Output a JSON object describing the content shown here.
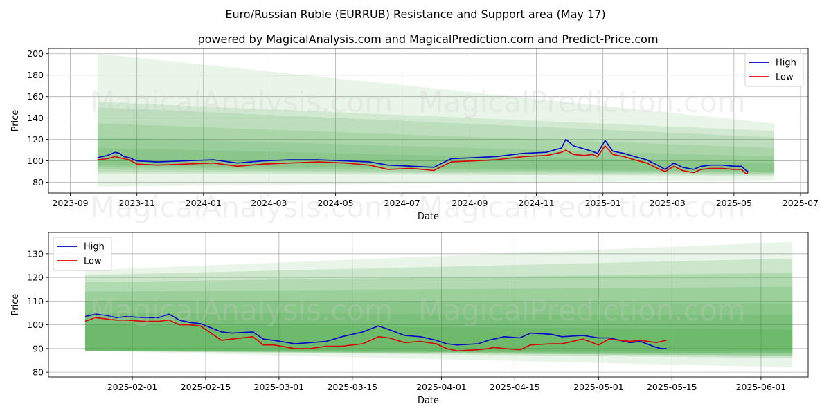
{
  "title": "Euro/Russian Ruble (EURRUB) Resistance and Support area (May 17)",
  "subtitle": "powered by MagicalAnalysis.com and MagicalPrediction.com and Predict-Price.com",
  "watermarks": [
    "MagicalAnalysis.com",
    "MagicalPrediction.com"
  ],
  "colors": {
    "high": "#0000cc",
    "low": "#dd0000",
    "band": "#2e9a2e",
    "grid": "#b0b0b0"
  },
  "chart_data": [
    {
      "type": "line",
      "panel": "top",
      "xlabel": "Date",
      "ylabel": "Price",
      "xlim": [
        "2023-08-12",
        "2025-07-08"
      ],
      "ylim": [
        70,
        205
      ],
      "xticks": [
        "2023-09",
        "2023-11",
        "2024-01",
        "2024-03",
        "2024-05",
        "2024-07",
        "2024-09",
        "2024-11",
        "2025-01",
        "2025-03",
        "2025-05",
        "2025-07"
      ],
      "yticks": [
        80,
        100,
        120,
        140,
        160,
        180,
        200
      ],
      "legend": {
        "position": "top-right",
        "entries": [
          "High",
          "Low"
        ]
      },
      "bands": {
        "start": "2023-09-26",
        "end": "2025-06-07",
        "levels": [
          {
            "start": [
              200,
              76
            ],
            "end": [
              135,
              82
            ],
            "opacity": 0.1
          },
          {
            "start": [
              155,
              88
            ],
            "end": [
              128,
              86
            ],
            "opacity": 0.13
          },
          {
            "start": [
              150,
              90
            ],
            "end": [
              122,
              87
            ],
            "opacity": 0.13
          },
          {
            "start": [
              135,
              92
            ],
            "end": [
              112,
              88
            ],
            "opacity": 0.13
          },
          {
            "start": [
              122,
              94
            ],
            "end": [
              104,
              89
            ],
            "opacity": 0.13
          },
          {
            "start": [
              112,
              96
            ],
            "end": [
              98,
              90
            ],
            "opacity": 0.13
          }
        ]
      },
      "series": [
        {
          "name": "High",
          "x": [
            "2023-09-26",
            "2023-10-05",
            "2023-10-12",
            "2023-10-16",
            "2023-10-20",
            "2023-10-25",
            "2023-11-01",
            "2023-11-20",
            "2023-12-15",
            "2024-01-10",
            "2024-02-01",
            "2024-02-25",
            "2024-03-20",
            "2024-04-15",
            "2024-05-10",
            "2024-06-01",
            "2024-06-18",
            "2024-07-10",
            "2024-07-30",
            "2024-08-15",
            "2024-09-05",
            "2024-09-25",
            "2024-10-20",
            "2024-11-10",
            "2024-11-24",
            "2024-11-28",
            "2024-12-05",
            "2024-12-15",
            "2024-12-22",
            "2024-12-27",
            "2025-01-03",
            "2025-01-10",
            "2025-01-20",
            "2025-01-30",
            "2025-02-10",
            "2025-02-20",
            "2025-02-27",
            "2025-03-07",
            "2025-03-15",
            "2025-03-25",
            "2025-04-01",
            "2025-04-10",
            "2025-04-20",
            "2025-05-01",
            "2025-05-08",
            "2025-05-12",
            "2025-05-14"
          ],
          "values": [
            103,
            105,
            108,
            107,
            104,
            103,
            100,
            99,
            100,
            101,
            98,
            100,
            101,
            101,
            100,
            99,
            96,
            95,
            94,
            102,
            103,
            104,
            107,
            108,
            112,
            120,
            114,
            111,
            109,
            107,
            119,
            109,
            107,
            104,
            101,
            96,
            92,
            98,
            94,
            92,
            95,
            96,
            96,
            95,
            95,
            91,
            90
          ]
        },
        {
          "name": "Low",
          "x": [
            "2023-09-26",
            "2023-10-05",
            "2023-10-12",
            "2023-10-16",
            "2023-10-20",
            "2023-10-25",
            "2023-11-01",
            "2023-11-20",
            "2023-12-15",
            "2024-01-10",
            "2024-02-01",
            "2024-02-25",
            "2024-03-20",
            "2024-04-15",
            "2024-05-10",
            "2024-06-01",
            "2024-06-18",
            "2024-07-10",
            "2024-07-30",
            "2024-08-15",
            "2024-09-05",
            "2024-09-25",
            "2024-10-20",
            "2024-11-10",
            "2024-11-24",
            "2024-11-28",
            "2024-12-05",
            "2024-12-15",
            "2024-12-22",
            "2024-12-27",
            "2025-01-03",
            "2025-01-10",
            "2025-01-20",
            "2025-01-30",
            "2025-02-10",
            "2025-02-20",
            "2025-02-27",
            "2025-03-07",
            "2025-03-15",
            "2025-03-25",
            "2025-04-01",
            "2025-04-10",
            "2025-04-20",
            "2025-05-01",
            "2025-05-08",
            "2025-05-12",
            "2025-05-14"
          ],
          "values": [
            101,
            102,
            104,
            103,
            102,
            101,
            97,
            96,
            97,
            98,
            95,
            97,
            98,
            99,
            98,
            96,
            92,
            93,
            91,
            99,
            100,
            101,
            104,
            105,
            108,
            110,
            106,
            105,
            106,
            104,
            114,
            106,
            104,
            101,
            98,
            93,
            90,
            95,
            91,
            89,
            92,
            93,
            93,
            92,
            92,
            88,
            89
          ]
        }
      ]
    },
    {
      "type": "line",
      "panel": "bottom",
      "xlabel": "Date",
      "ylabel": "Price",
      "xlim": [
        "2025-01-16",
        "2025-06-10"
      ],
      "ylim": [
        78,
        139
      ],
      "xticks": [
        "2025-02-01",
        "2025-02-15",
        "2025-03-01",
        "2025-03-15",
        "2025-04-01",
        "2025-04-15",
        "2025-05-01",
        "2025-05-15",
        "2025-06-01"
      ],
      "yticks": [
        80,
        90,
        100,
        110,
        120,
        130
      ],
      "legend": {
        "position": "top-left",
        "entries": [
          "High",
          "Low"
        ]
      },
      "bands": {
        "start": "2025-01-23",
        "end": "2025-06-07",
        "levels": [
          {
            "start": [
              123,
              89
            ],
            "end": [
              135,
              82
            ],
            "opacity": 0.1
          },
          {
            "start": [
              121,
              89
            ],
            "end": [
              128,
              86
            ],
            "opacity": 0.16
          },
          {
            "start": [
              118,
              89
            ],
            "end": [
              122,
              87
            ],
            "opacity": 0.16
          },
          {
            "start": [
              114,
              89
            ],
            "end": [
              116,
              87
            ],
            "opacity": 0.16
          },
          {
            "start": [
              110,
              89
            ],
            "end": [
              109,
              88
            ],
            "opacity": 0.16
          },
          {
            "start": [
              105,
              89
            ],
            "end": [
              104,
              88
            ],
            "opacity": 0.16
          },
          {
            "start": [
              100,
              89
            ],
            "end": [
              98,
              89
            ],
            "opacity": 0.16
          }
        ]
      },
      "series": [
        {
          "name": "High",
          "x": [
            "2025-01-23",
            "2025-01-25",
            "2025-01-27",
            "2025-01-29",
            "2025-01-31",
            "2025-02-03",
            "2025-02-06",
            "2025-02-08",
            "2025-02-10",
            "2025-02-12",
            "2025-02-14",
            "2025-02-18",
            "2025-02-20",
            "2025-02-24",
            "2025-02-26",
            "2025-02-28",
            "2025-03-04",
            "2025-03-07",
            "2025-03-10",
            "2025-03-13",
            "2025-03-17",
            "2025-03-20",
            "2025-03-22",
            "2025-03-25",
            "2025-03-28",
            "2025-03-31",
            "2025-04-02",
            "2025-04-04",
            "2025-04-08",
            "2025-04-10",
            "2025-04-11",
            "2025-04-13",
            "2025-04-16",
            "2025-04-18",
            "2025-04-22",
            "2025-04-24",
            "2025-04-28",
            "2025-05-01",
            "2025-05-03",
            "2025-05-07",
            "2025-05-09",
            "2025-05-12",
            "2025-05-13",
            "2025-05-14"
          ],
          "values": [
            103.5,
            104.5,
            104,
            103,
            103.5,
            103,
            103,
            104.5,
            102,
            101,
            100.5,
            97,
            96.5,
            97,
            94,
            93.5,
            92,
            92.5,
            93,
            95,
            97,
            99.5,
            98,
            95.5,
            95,
            93.5,
            92,
            91.5,
            92,
            93.5,
            94,
            95,
            94.5,
            96.5,
            96,
            95,
            95.5,
            94.5,
            94.5,
            92.5,
            93,
            90.5,
            90,
            90
          ]
        },
        {
          "name": "Low",
          "x": [
            "2025-01-23",
            "2025-01-25",
            "2025-01-27",
            "2025-01-29",
            "2025-01-31",
            "2025-02-03",
            "2025-02-06",
            "2025-02-08",
            "2025-02-10",
            "2025-02-12",
            "2025-02-14",
            "2025-02-18",
            "2025-02-20",
            "2025-02-24",
            "2025-02-26",
            "2025-02-28",
            "2025-03-04",
            "2025-03-07",
            "2025-03-10",
            "2025-03-13",
            "2025-03-17",
            "2025-03-20",
            "2025-03-22",
            "2025-03-25",
            "2025-03-28",
            "2025-03-31",
            "2025-04-02",
            "2025-04-04",
            "2025-04-08",
            "2025-04-10",
            "2025-04-11",
            "2025-04-13",
            "2025-04-16",
            "2025-04-18",
            "2025-04-22",
            "2025-04-24",
            "2025-04-28",
            "2025-05-01",
            "2025-05-03",
            "2025-05-07",
            "2025-05-09",
            "2025-05-12",
            "2025-05-13",
            "2025-05-14"
          ],
          "values": [
            101.5,
            103,
            102.5,
            102,
            102,
            101.5,
            101.5,
            102,
            100,
            100,
            99.5,
            93.5,
            94,
            95,
            91.5,
            91.5,
            90,
            90,
            91,
            91,
            92,
            95,
            94.5,
            92.5,
            93,
            92,
            90,
            89,
            89.5,
            90,
            90.5,
            90,
            89.5,
            91.5,
            92,
            92,
            94,
            91.5,
            94,
            93,
            93.5,
            92.5,
            93,
            93.5
          ]
        }
      ]
    }
  ]
}
